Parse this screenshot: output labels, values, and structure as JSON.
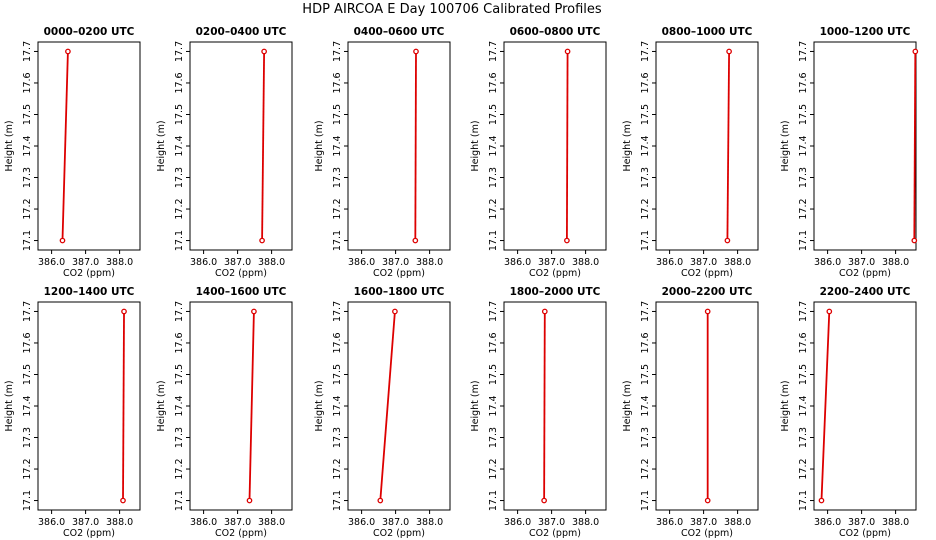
{
  "title": "HDP AIRCOA E  Day 100706  Calibrated Profiles",
  "colors": {
    "series": "#dd0000",
    "axis": "#000000",
    "background": "#ffffff"
  },
  "chart_data": [
    {
      "type": "line",
      "title": "0000–0200 UTC",
      "xlabel": "CO2 (ppm)",
      "ylabel": "Height (m)",
      "xlim": [
        385.6,
        388.6
      ],
      "ylim": [
        17.07,
        17.73
      ],
      "x_ticks": [
        "386.0",
        "387.0",
        "388.0"
      ],
      "y_ticks": [
        "17.1",
        "17.2",
        "17.3",
        "17.4",
        "17.5",
        "17.6",
        "17.7"
      ],
      "x": [
        386.32,
        386.48
      ],
      "y": [
        17.1,
        17.7
      ],
      "grid": false,
      "markers": "open-circle-endpoints"
    },
    {
      "type": "line",
      "title": "0200–0400 UTC",
      "xlabel": "CO2 (ppm)",
      "ylabel": "Height (m)",
      "xlim": [
        385.6,
        388.6
      ],
      "ylim": [
        17.07,
        17.73
      ],
      "x_ticks": [
        "386.0",
        "387.0",
        "388.0"
      ],
      "y_ticks": [
        "17.1",
        "17.2",
        "17.3",
        "17.4",
        "17.5",
        "17.6",
        "17.7"
      ],
      "x": [
        387.72,
        387.78
      ],
      "y": [
        17.1,
        17.7
      ],
      "grid": false,
      "markers": "open-circle-endpoints"
    },
    {
      "type": "line",
      "title": "0400–0600 UTC",
      "xlabel": "CO2 (ppm)",
      "ylabel": "Height (m)",
      "xlim": [
        385.6,
        388.6
      ],
      "ylim": [
        17.07,
        17.73
      ],
      "x_ticks": [
        "386.0",
        "387.0",
        "388.0"
      ],
      "y_ticks": [
        "17.1",
        "17.2",
        "17.3",
        "17.4",
        "17.5",
        "17.6",
        "17.7"
      ],
      "x": [
        387.58,
        387.6
      ],
      "y": [
        17.1,
        17.7
      ],
      "grid": false,
      "markers": "open-circle-endpoints"
    },
    {
      "type": "line",
      "title": "0600–0800 UTC",
      "xlabel": "CO2 (ppm)",
      "ylabel": "Height (m)",
      "xlim": [
        385.6,
        388.6
      ],
      "ylim": [
        17.07,
        17.73
      ],
      "x_ticks": [
        "386.0",
        "387.0",
        "388.0"
      ],
      "y_ticks": [
        "17.1",
        "17.2",
        "17.3",
        "17.4",
        "17.5",
        "17.6",
        "17.7"
      ],
      "x": [
        387.45,
        387.47
      ],
      "y": [
        17.1,
        17.7
      ],
      "grid": false,
      "markers": "open-circle-endpoints"
    },
    {
      "type": "line",
      "title": "0800–1000 UTC",
      "xlabel": "CO2 (ppm)",
      "ylabel": "Height (m)",
      "xlim": [
        385.6,
        388.6
      ],
      "ylim": [
        17.07,
        17.73
      ],
      "x_ticks": [
        "386.0",
        "387.0",
        "388.0"
      ],
      "y_ticks": [
        "17.1",
        "17.2",
        "17.3",
        "17.4",
        "17.5",
        "17.6",
        "17.7"
      ],
      "x": [
        387.7,
        387.75
      ],
      "y": [
        17.1,
        17.7
      ],
      "grid": false,
      "markers": "open-circle-endpoints"
    },
    {
      "type": "line",
      "title": "1000–1200 UTC",
      "xlabel": "CO2 (ppm)",
      "ylabel": "Height (m)",
      "xlim": [
        385.6,
        388.6
      ],
      "ylim": [
        17.07,
        17.73
      ],
      "x_ticks": [
        "386.0",
        "387.0",
        "388.0"
      ],
      "y_ticks": [
        "17.1",
        "17.2",
        "17.3",
        "17.4",
        "17.5",
        "17.6",
        "17.7"
      ],
      "x": [
        388.55,
        388.58
      ],
      "y": [
        17.1,
        17.7
      ],
      "grid": false,
      "markers": "open-circle-endpoints"
    },
    {
      "type": "line",
      "title": "1200–1400 UTC",
      "xlabel": "CO2 (ppm)",
      "ylabel": "Height (m)",
      "xlim": [
        385.6,
        388.6
      ],
      "ylim": [
        17.07,
        17.73
      ],
      "x_ticks": [
        "386.0",
        "387.0",
        "388.0"
      ],
      "y_ticks": [
        "17.1",
        "17.2",
        "17.3",
        "17.4",
        "17.5",
        "17.6",
        "17.7"
      ],
      "x": [
        388.1,
        388.13
      ],
      "y": [
        17.1,
        17.7
      ],
      "grid": false,
      "markers": "open-circle-endpoints"
    },
    {
      "type": "line",
      "title": "1400–1600 UTC",
      "xlabel": "CO2 (ppm)",
      "ylabel": "Height (m)",
      "xlim": [
        385.6,
        388.6
      ],
      "ylim": [
        17.07,
        17.73
      ],
      "x_ticks": [
        "386.0",
        "387.0",
        "388.0"
      ],
      "y_ticks": [
        "17.1",
        "17.2",
        "17.3",
        "17.4",
        "17.5",
        "17.6",
        "17.7"
      ],
      "x": [
        387.35,
        387.48
      ],
      "y": [
        17.1,
        17.7
      ],
      "grid": false,
      "markers": "open-circle-endpoints"
    },
    {
      "type": "line",
      "title": "1600–1800 UTC",
      "xlabel": "CO2 (ppm)",
      "ylabel": "Height (m)",
      "xlim": [
        385.6,
        388.6
      ],
      "ylim": [
        17.07,
        17.73
      ],
      "x_ticks": [
        "386.0",
        "387.0",
        "388.0"
      ],
      "y_ticks": [
        "17.1",
        "17.2",
        "17.3",
        "17.4",
        "17.5",
        "17.6",
        "17.7"
      ],
      "x": [
        386.55,
        386.98
      ],
      "y": [
        17.1,
        17.7
      ],
      "grid": false,
      "markers": "open-circle-endpoints"
    },
    {
      "type": "line",
      "title": "1800–2000 UTC",
      "xlabel": "CO2 (ppm)",
      "ylabel": "Height (m)",
      "xlim": [
        385.6,
        388.6
      ],
      "ylim": [
        17.07,
        17.73
      ],
      "x_ticks": [
        "386.0",
        "387.0",
        "388.0"
      ],
      "y_ticks": [
        "17.1",
        "17.2",
        "17.3",
        "17.4",
        "17.5",
        "17.6",
        "17.7"
      ],
      "x": [
        386.78,
        386.8
      ],
      "y": [
        17.1,
        17.7
      ],
      "grid": false,
      "markers": "open-circle-endpoints"
    },
    {
      "type": "line",
      "title": "2000–2200 UTC",
      "xlabel": "CO2 (ppm)",
      "ylabel": "Height (m)",
      "xlim": [
        385.6,
        388.6
      ],
      "ylim": [
        17.07,
        17.73
      ],
      "x_ticks": [
        "386.0",
        "387.0",
        "388.0"
      ],
      "y_ticks": [
        "17.1",
        "17.2",
        "17.3",
        "17.4",
        "17.5",
        "17.6",
        "17.7"
      ],
      "x": [
        387.12,
        387.12
      ],
      "y": [
        17.1,
        17.7
      ],
      "grid": false,
      "markers": "open-circle-endpoints"
    },
    {
      "type": "line",
      "title": "2200–2400 UTC",
      "xlabel": "CO2 (ppm)",
      "ylabel": "Height (m)",
      "xlim": [
        385.6,
        388.6
      ],
      "ylim": [
        17.07,
        17.73
      ],
      "x_ticks": [
        "386.0",
        "387.0",
        "388.0"
      ],
      "y_ticks": [
        "17.1",
        "17.2",
        "17.3",
        "17.4",
        "17.5",
        "17.6",
        "17.7"
      ],
      "x": [
        385.82,
        386.05
      ],
      "y": [
        17.1,
        17.7
      ],
      "grid": false,
      "markers": "open-circle-endpoints"
    }
  ]
}
